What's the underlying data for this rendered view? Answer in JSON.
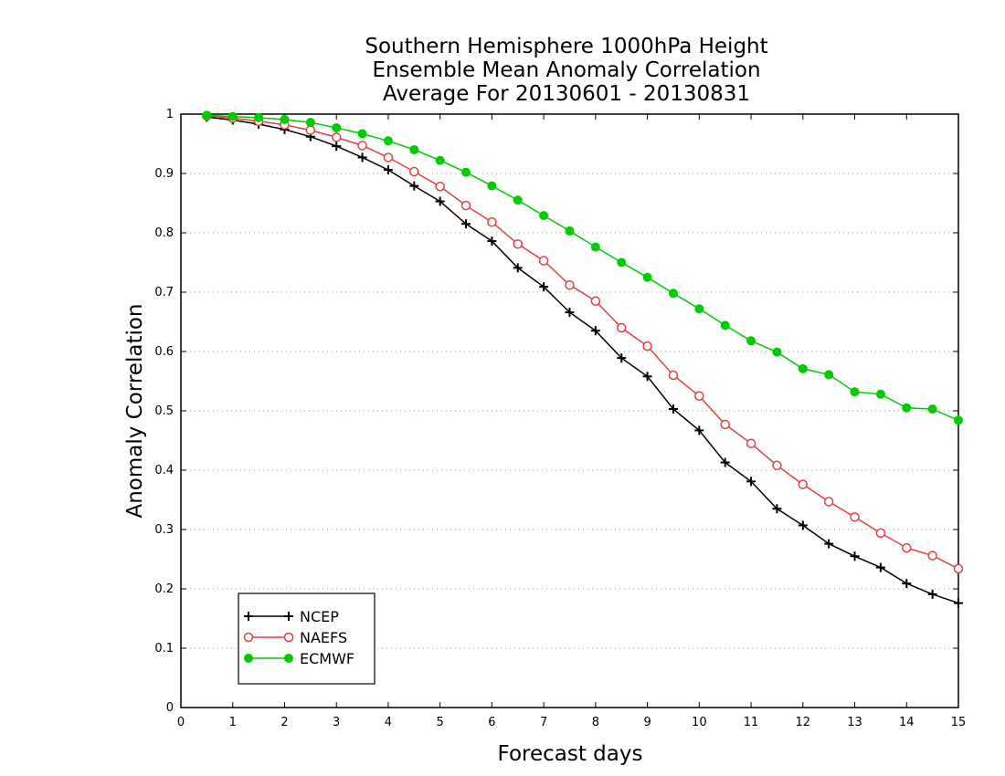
{
  "chart_data": {
    "type": "line",
    "title_lines": [
      "Southern Hemisphere 1000hPa Height",
      "Ensemble Mean Anomaly Correlation",
      "Average For 20130601 - 20130831"
    ],
    "xlabel": "Forecast days",
    "ylabel": "Anomaly Correlation",
    "xlim": [
      0,
      15
    ],
    "ylim": [
      0,
      1
    ],
    "x_ticks": [
      "0",
      "1",
      "2",
      "3",
      "4",
      "5",
      "6",
      "7",
      "8",
      "9",
      "10",
      "11",
      "12",
      "13",
      "14",
      "15"
    ],
    "y_ticks": [
      "0",
      "0.1",
      "0.2",
      "0.3",
      "0.4",
      "0.5",
      "0.6",
      "0.7",
      "0.8",
      "0.9",
      "1"
    ],
    "grid": "horizontal-dotted",
    "legend_position": "bottom-left",
    "x": [
      0.5,
      1,
      1.5,
      2,
      2.5,
      3,
      3.5,
      4,
      4.5,
      5,
      5.5,
      6,
      6.5,
      7,
      7.5,
      8,
      8.5,
      9,
      9.5,
      10,
      10.5,
      11,
      11.5,
      12,
      12.5,
      13,
      13.5,
      14,
      14.5,
      15
    ],
    "series": [
      {
        "name": "NCEP",
        "color": "#000000",
        "marker": "plus",
        "values": [
          0.995,
          0.99,
          0.983,
          0.974,
          0.962,
          0.946,
          0.927,
          0.906,
          0.879,
          0.853,
          0.815,
          0.786,
          0.741,
          0.709,
          0.666,
          0.635,
          0.589,
          0.558,
          0.503,
          0.467,
          0.413,
          0.381,
          0.335,
          0.307,
          0.276,
          0.255,
          0.236,
          0.209,
          0.191,
          0.176
        ]
      },
      {
        "name": "NAEFS",
        "color": "#e04040",
        "marker": "open-circle",
        "values": [
          0.997,
          0.993,
          0.988,
          0.982,
          0.973,
          0.961,
          0.947,
          0.927,
          0.903,
          0.878,
          0.846,
          0.818,
          0.781,
          0.753,
          0.712,
          0.685,
          0.64,
          0.609,
          0.56,
          0.525,
          0.477,
          0.445,
          0.408,
          0.376,
          0.347,
          0.321,
          0.294,
          0.269,
          0.256,
          0.234
        ]
      },
      {
        "name": "ECMWF",
        "color": "#00cc00",
        "marker": "filled-circle",
        "values": [
          0.998,
          0.996,
          0.994,
          0.991,
          0.986,
          0.977,
          0.967,
          0.955,
          0.94,
          0.922,
          0.902,
          0.879,
          0.855,
          0.829,
          0.803,
          0.776,
          0.75,
          0.725,
          0.698,
          0.672,
          0.644,
          0.618,
          0.599,
          0.571,
          0.561,
          0.532,
          0.528,
          0.505,
          0.503,
          0.484
        ]
      }
    ]
  }
}
